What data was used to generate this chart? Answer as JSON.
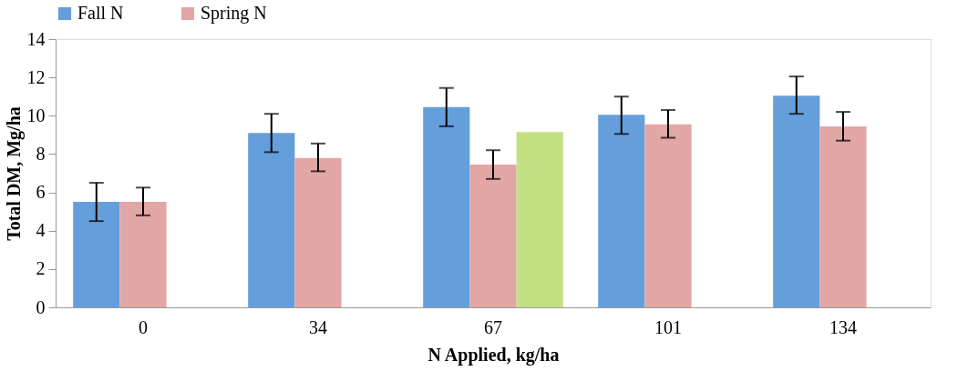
{
  "chart_data": {
    "type": "bar",
    "xlabel": "N Applied, kg/ha",
    "ylabel": "Total DM, Mg/ha",
    "categories": [
      "0",
      "34",
      "67",
      "101",
      "134"
    ],
    "series": [
      {
        "name": "Fall N",
        "color": "#659fdb",
        "values": [
          5.5,
          9.1,
          10.45,
          10.05,
          11.05
        ],
        "errors": [
          [
            4.5,
            6.5
          ],
          [
            8.1,
            10.1
          ],
          [
            9.45,
            11.45
          ],
          [
            9.05,
            11.0
          ],
          [
            10.1,
            12.05
          ]
        ]
      },
      {
        "name": "Spring N",
        "color": "#e2a6a5",
        "values": [
          5.5,
          7.8,
          7.45,
          9.55,
          9.45
        ],
        "errors": [
          [
            4.8,
            6.25
          ],
          [
            7.1,
            8.55
          ],
          [
            6.7,
            8.2
          ],
          [
            8.85,
            10.3
          ],
          [
            8.7,
            10.2
          ]
        ]
      },
      {
        "color": "#c3e083",
        "values": [
          null,
          null,
          9.15,
          null,
          null
        ]
      }
    ],
    "ylim": [
      0,
      14
    ],
    "yticks": [
      0,
      2,
      4,
      6,
      8,
      10,
      12,
      14
    ],
    "grid": false,
    "legend": "top"
  }
}
